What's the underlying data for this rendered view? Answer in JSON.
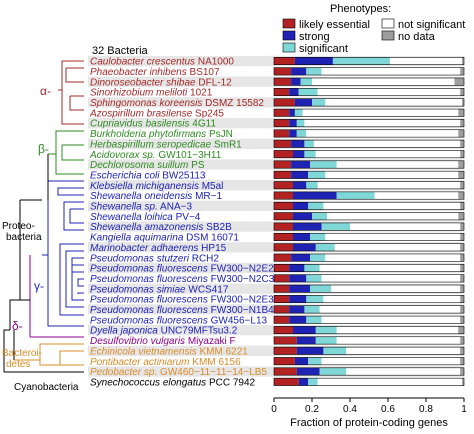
{
  "chart_data": {
    "type": "bar",
    "stacked": true,
    "orientation": "horizontal",
    "header": "32 Bacteria",
    "xlabel": "Fraction of protein-coding genes",
    "xlim": [
      0,
      1
    ],
    "xticks": [
      "0",
      "0.2",
      "0.4",
      "0.6",
      "0.8",
      "1"
    ],
    "legend_title": "Phenotypes:",
    "legend": [
      {
        "key": "likely_essential",
        "label": "likely essential",
        "color": "#b22222"
      },
      {
        "key": "strong",
        "label": "strong",
        "color": "#1f23b4"
      },
      {
        "key": "significant",
        "label": "significant",
        "color": "#7fd7d7"
      },
      {
        "key": "not_significant",
        "label": "not significant",
        "color": "#ffffff"
      },
      {
        "key": "no_data",
        "label": "no data",
        "color": "#9e9e9e"
      }
    ],
    "groups": [
      {
        "label": "α-",
        "color": "#a52a2a"
      },
      {
        "label": "β-",
        "color": "#2e8b22"
      },
      {
        "label": "γ-",
        "color": "#1f23b4"
      },
      {
        "label": "δ-",
        "color": "#8b008b"
      },
      {
        "label": "Proteo-",
        "color": "#000000"
      },
      {
        "label": "bacteria",
        "color": "#000000"
      },
      {
        "label": "Bacteroi-",
        "color": "#d98c2b"
      },
      {
        "label": "detes",
        "color": "#d98c2b"
      },
      {
        "label": "Cyanobacteria",
        "color": "#000000"
      }
    ],
    "series_order": [
      "likely_essential",
      "strong",
      "significant",
      "not_significant",
      "no_data"
    ],
    "rows": [
      {
        "genus": "Caulobacter crescentus",
        "strain": "NA1000",
        "color": "#a52a2a",
        "values": [
          0.11,
          0.2,
          0.3,
          0.38,
          0.01
        ]
      },
      {
        "genus": "Phaeobacter inhibens",
        "strain": "BS107",
        "color": "#a52a2a",
        "values": [
          0.09,
          0.08,
          0.08,
          0.73,
          0.02
        ]
      },
      {
        "genus": "Dinoroseobacter shibae",
        "strain": "DFL-12",
        "color": "#a52a2a",
        "values": [
          0.09,
          0.05,
          0.06,
          0.75,
          0.05
        ]
      },
      {
        "genus": "Sinorhizobium meliloti",
        "strain": "1021",
        "color": "#a52a2a",
        "values": [
          0.08,
          0.05,
          0.1,
          0.75,
          0.02
        ]
      },
      {
        "genus": "Sphingomonas koreensis",
        "strain": "DSMZ 15582",
        "color": "#a52a2a",
        "values": [
          0.11,
          0.09,
          0.07,
          0.72,
          0.01
        ]
      },
      {
        "genus": "Azospirillum brasilense",
        "strain": "Sp245",
        "color": "#a52a2a",
        "values": [
          0.08,
          0.03,
          0.04,
          0.82,
          0.03
        ]
      },
      {
        "genus": "Cupriavidus basilensis",
        "strain": "4G11",
        "color": "#2e8b22",
        "values": [
          0.08,
          0.04,
          0.04,
          0.82,
          0.02
        ]
      },
      {
        "genus": "Burkholderia phytofirmans",
        "strain": "PsJN",
        "color": "#2e8b22",
        "values": [
          0.08,
          0.04,
          0.05,
          0.8,
          0.03
        ]
      },
      {
        "genus": "Herbaspirillum seropedicae",
        "strain": "SmR1",
        "color": "#2e8b22",
        "values": [
          0.09,
          0.07,
          0.05,
          0.77,
          0.02
        ]
      },
      {
        "genus": "Acidovorax sp.",
        "strain": "GW101−3H11",
        "color": "#2e8b22",
        "values": [
          0.1,
          0.06,
          0.06,
          0.76,
          0.02
        ]
      },
      {
        "genus": "Dechlorosoma suillum",
        "strain": "PS",
        "color": "#2e8b22",
        "values": [
          0.09,
          0.1,
          0.14,
          0.64,
          0.03
        ]
      },
      {
        "genus": "Escherichia coli",
        "strain": "BW25113",
        "color": "#1f23b4",
        "values": [
          0.09,
          0.09,
          0.09,
          0.7,
          0.03
        ]
      },
      {
        "genus": "Klebsiella michiganensis",
        "strain": "M5al",
        "color": "#1f23b4",
        "values": [
          0.1,
          0.07,
          0.06,
          0.75,
          0.02
        ]
      },
      {
        "genus": "Shewanella oneidensis",
        "strain": "MR−1",
        "color": "#1f23b4",
        "values": [
          0.1,
          0.23,
          0.2,
          0.44,
          0.03
        ]
      },
      {
        "genus": "Shewanella sp.",
        "strain": "ANA−3",
        "color": "#1f23b4",
        "values": [
          0.1,
          0.08,
          0.08,
          0.72,
          0.02
        ]
      },
      {
        "genus": "Shewanella loihica",
        "strain": "PV−4",
        "color": "#1f23b4",
        "values": [
          0.1,
          0.1,
          0.08,
          0.69,
          0.03
        ]
      },
      {
        "genus": "Shewanella amazonensis",
        "strain": "SB2B",
        "color": "#1f23b4",
        "values": [
          0.1,
          0.15,
          0.15,
          0.58,
          0.02
        ]
      },
      {
        "genus": "Kangiella aquimarina",
        "strain": "DSM 16071",
        "color": "#1f23b4",
        "values": [
          0.1,
          0.09,
          0.08,
          0.71,
          0.02
        ]
      },
      {
        "genus": "Marinobacter adhaerens",
        "strain": "HP15",
        "color": "#1f23b4",
        "values": [
          0.1,
          0.12,
          0.1,
          0.66,
          0.02
        ]
      },
      {
        "genus": "Pseudomonas stutzeri",
        "strain": "RCH2",
        "color": "#1f23b4",
        "values": [
          0.09,
          0.1,
          0.08,
          0.71,
          0.02
        ]
      },
      {
        "genus": "Pseudomonas fluorescens",
        "strain": "FW300−N2E2",
        "color": "#1f23b4",
        "values": [
          0.08,
          0.08,
          0.08,
          0.74,
          0.02
        ]
      },
      {
        "genus": "Pseudomonas fluorescens",
        "strain": "FW300−N2C3",
        "color": "#1f23b4",
        "values": [
          0.08,
          0.09,
          0.08,
          0.73,
          0.02
        ]
      },
      {
        "genus": "Pseudomonas simiae",
        "strain": "WCS417",
        "color": "#1f23b4",
        "values": [
          0.08,
          0.11,
          0.11,
          0.68,
          0.02
        ]
      },
      {
        "genus": "Pseudomonas fluorescens",
        "strain": "FW300−N2E3",
        "color": "#1f23b4",
        "values": [
          0.08,
          0.09,
          0.09,
          0.72,
          0.02
        ]
      },
      {
        "genus": "Pseudomonas fluorescens",
        "strain": "FW300−N1B4",
        "color": "#1f23b4",
        "values": [
          0.08,
          0.08,
          0.08,
          0.74,
          0.02
        ]
      },
      {
        "genus": "Pseudomonas fluorescens",
        "strain": "GW456−L13",
        "color": "#1f23b4",
        "values": [
          0.08,
          0.09,
          0.08,
          0.73,
          0.02
        ]
      },
      {
        "genus": "Dyella japonica",
        "strain": "UNC79MFTsu3.2",
        "color": "#1f23b4",
        "values": [
          0.1,
          0.12,
          0.11,
          0.64,
          0.03
        ]
      },
      {
        "genus": "Desulfovibrio vulgaris",
        "strain": "Miyazaki F",
        "color": "#8b008b",
        "values": [
          0.12,
          0.1,
          0.11,
          0.65,
          0.02
        ]
      },
      {
        "genus": "Echinicola vietnamensis",
        "strain": "KMM 6221",
        "color": "#d98c2b",
        "values": [
          0.12,
          0.14,
          0.12,
          0.6,
          0.02
        ]
      },
      {
        "genus": "Pontibacter actiniarum",
        "strain": "KMM 6156",
        "color": "#d98c2b",
        "values": [
          0.11,
          0.07,
          0.07,
          0.73,
          0.02
        ]
      },
      {
        "genus": "Pedobacter sp.",
        "strain": "GW460−11−11−14−LB5",
        "color": "#d98c2b",
        "values": [
          0.12,
          0.12,
          0.14,
          0.6,
          0.02
        ]
      },
      {
        "genus": "Synechococcus elongatus",
        "strain": "PCC 7942",
        "color": "#000000",
        "values": [
          0.13,
          0.05,
          0.05,
          0.76,
          0.01
        ]
      }
    ]
  }
}
